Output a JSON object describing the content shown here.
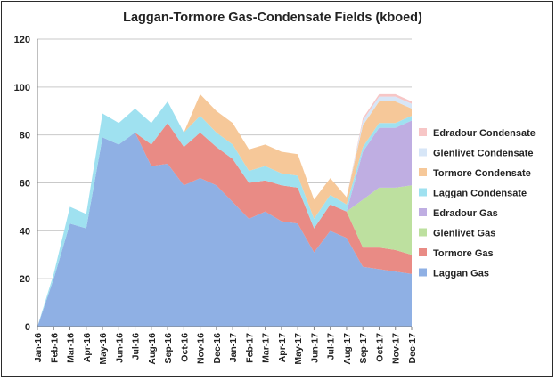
{
  "chart_data": {
    "type": "area",
    "stacked": true,
    "title": "Laggan-Tormore Gas-Condensate Fields (kboed)",
    "xlabel": "",
    "ylabel": "",
    "ylim": [
      0,
      120
    ],
    "yticks": [
      0,
      20,
      40,
      60,
      80,
      100,
      120
    ],
    "grid": true,
    "legend_position": "right",
    "categories": [
      "Jan-16",
      "Feb-16",
      "Mar-16",
      "Apr-16",
      "May-16",
      "Jun-16",
      "Jul-16",
      "Aug-16",
      "Sep-16",
      "Oct-16",
      "Nov-16",
      "Dec-16",
      "Jan-17",
      "Feb-17",
      "Mar-17",
      "Apr-17",
      "May-17",
      "Jun-17",
      "Jul-17",
      "Aug-17",
      "Sep-17",
      "Oct-17",
      "Nov-17",
      "Dec-17"
    ],
    "series": [
      {
        "name": "Laggan Gas",
        "color": "#8fb0e4",
        "values": [
          0,
          20,
          43,
          41,
          79,
          76,
          81,
          67,
          68,
          59,
          62,
          59,
          52,
          45,
          48,
          44,
          43,
          31,
          40,
          37,
          25,
          24,
          23,
          22
        ]
      },
      {
        "name": "Tormore Gas",
        "color": "#e98b85",
        "values": [
          0,
          0,
          0,
          0,
          0,
          0,
          0,
          9,
          17,
          16,
          19,
          16,
          18,
          15,
          13,
          15,
          15,
          10,
          11,
          11,
          8,
          9,
          9,
          8
        ]
      },
      {
        "name": "Glenlivet Gas",
        "color": "#bde09f",
        "values": [
          0,
          0,
          0,
          0,
          0,
          0,
          0,
          0,
          0,
          0,
          0,
          0,
          0,
          0,
          0,
          0,
          0,
          0,
          0,
          0,
          20,
          25,
          26,
          29
        ]
      },
      {
        "name": "Edradour Gas",
        "color": "#bfaee2",
        "values": [
          0,
          0,
          0,
          0,
          0,
          0,
          0,
          0,
          0,
          0,
          0,
          0,
          0,
          0,
          0,
          0,
          0,
          0,
          0,
          0,
          20,
          25,
          25,
          27
        ]
      },
      {
        "name": "Laggan Condensate",
        "color": "#9fe1f0",
        "values": [
          0,
          2,
          7,
          6,
          10,
          9,
          10,
          9,
          9,
          6,
          7,
          6,
          6,
          5,
          6,
          5,
          5,
          4,
          4,
          3,
          2,
          2,
          2,
          2
        ]
      },
      {
        "name": "Tormore Condensate",
        "color": "#f6c899",
        "values": [
          0,
          0,
          0,
          0,
          0,
          0,
          0,
          0,
          0,
          0,
          9,
          9,
          9,
          9,
          9,
          9,
          9,
          8,
          7,
          3,
          9,
          9,
          9,
          3
        ]
      },
      {
        "name": "Glenlivet Condensate",
        "color": "#d7e6f7",
        "values": [
          0,
          0,
          0,
          0,
          0,
          0,
          0,
          0,
          0,
          0,
          0,
          0,
          0,
          0,
          0,
          0,
          0,
          0,
          0,
          0,
          2,
          2,
          2,
          2
        ]
      },
      {
        "name": "Edradour Condensate",
        "color": "#f7c6c6",
        "values": [
          0,
          0,
          0,
          0,
          0,
          0,
          0,
          0,
          0,
          0,
          0,
          0,
          0,
          0,
          0,
          0,
          0,
          0,
          0,
          0,
          1,
          1,
          1,
          1
        ]
      }
    ],
    "legend_order": [
      "Edradour Condensate",
      "Glenlivet Condensate",
      "Tormore Condensate",
      "Laggan Condensate",
      "Edradour Gas",
      "Glenlivet Gas",
      "Tormore Gas",
      "Laggan Gas"
    ]
  }
}
